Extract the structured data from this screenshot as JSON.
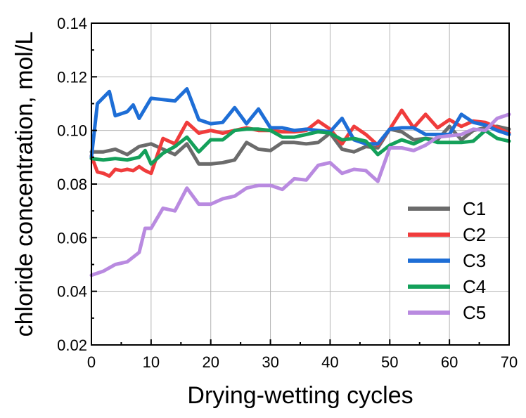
{
  "chart_data": {
    "type": "line",
    "title": "",
    "xlabel": "Drying-wetting cycles",
    "ylabel": "chloride concentration, mol/L",
    "xlim": [
      0,
      70
    ],
    "ylim": [
      0.02,
      0.14
    ],
    "xticks": [
      0,
      10,
      20,
      30,
      40,
      50,
      60,
      70
    ],
    "yticks": [
      0.02,
      0.04,
      0.06,
      0.08,
      0.1,
      0.12,
      0.14
    ],
    "xtick_labels": [
      "0",
      "10",
      "20",
      "30",
      "40",
      "50",
      "60",
      "70"
    ],
    "ytick_labels": [
      "0.02",
      "0.04",
      "0.06",
      "0.08",
      "0.10",
      "0.12",
      "0.14"
    ],
    "grid": true,
    "legend_position": "lower-right",
    "series": [
      {
        "name": "C1",
        "color": "#6b6b6b",
        "x": [
          0,
          2,
          4,
          6,
          8,
          10,
          12,
          14,
          16,
          18,
          20,
          22,
          24,
          26,
          28,
          30,
          32,
          34,
          36,
          38,
          40,
          42,
          44,
          46,
          48,
          50,
          52,
          54,
          56,
          58,
          60,
          62,
          64,
          66,
          68,
          70
        ],
        "y": [
          0.092,
          0.092,
          0.093,
          0.091,
          0.094,
          0.095,
          0.093,
          0.091,
          0.095,
          0.0875,
          0.0875,
          0.088,
          0.089,
          0.0955,
          0.093,
          0.0925,
          0.0955,
          0.0955,
          0.095,
          0.0955,
          0.099,
          0.093,
          0.092,
          0.094,
          0.0935,
          0.1005,
          0.0995,
          0.0965,
          0.097,
          0.0965,
          0.1015,
          0.0965,
          0.1,
          0.101,
          0.1015,
          0.1005
        ]
      },
      {
        "name": "C2",
        "color": "#f03c3c",
        "x": [
          0,
          1,
          2,
          3,
          4,
          5,
          6,
          7,
          8,
          9,
          10,
          12,
          14,
          16,
          18,
          20,
          22,
          24,
          26,
          28,
          30,
          32,
          34,
          36,
          38,
          40,
          42,
          44,
          46,
          48,
          50,
          52,
          54,
          56,
          58,
          60,
          62,
          64,
          66,
          68,
          70
        ],
        "y": [
          0.0905,
          0.0845,
          0.084,
          0.083,
          0.0855,
          0.085,
          0.0855,
          0.085,
          0.0865,
          0.085,
          0.084,
          0.097,
          0.095,
          0.103,
          0.099,
          0.1,
          0.099,
          0.1,
          0.101,
          0.1,
          0.1,
          0.0995,
          0.0995,
          0.1,
          0.1035,
          0.1005,
          0.095,
          0.1015,
          0.0985,
          0.0945,
          0.1005,
          0.1075,
          0.101,
          0.106,
          0.101,
          0.104,
          0.1015,
          0.1035,
          0.103,
          0.101,
          0.099
        ]
      },
      {
        "name": "C3",
        "color": "#1e6ed6",
        "x": [
          0,
          1,
          3,
          4,
          6,
          7,
          8,
          10,
          12,
          14,
          16,
          18,
          20,
          22,
          24,
          26,
          28,
          30,
          32,
          34,
          36,
          38,
          40,
          42,
          44,
          46,
          48,
          50,
          52,
          54,
          56,
          58,
          60,
          62,
          64,
          66,
          68,
          70
        ],
        "y": [
          0.09,
          0.11,
          0.1145,
          0.1055,
          0.107,
          0.1095,
          0.1045,
          0.112,
          0.1115,
          0.111,
          0.1155,
          0.104,
          0.1025,
          0.103,
          0.1085,
          0.1025,
          0.108,
          0.101,
          0.101,
          0.1,
          0.1005,
          0.1,
          0.0995,
          0.1045,
          0.0965,
          0.095,
          0.095,
          0.1005,
          0.101,
          0.101,
          0.0985,
          0.0985,
          0.0985,
          0.106,
          0.103,
          0.102,
          0.1,
          0.0985
        ]
      },
      {
        "name": "C4",
        "color": "#14a05a",
        "x": [
          0,
          2,
          4,
          6,
          8,
          9,
          10,
          12,
          14,
          16,
          18,
          20,
          22,
          24,
          26,
          28,
          30,
          32,
          34,
          36,
          38,
          40,
          42,
          44,
          46,
          48,
          50,
          52,
          54,
          56,
          58,
          60,
          62,
          64,
          66,
          68,
          70
        ],
        "y": [
          0.0895,
          0.089,
          0.0895,
          0.089,
          0.09,
          0.0925,
          0.0875,
          0.0915,
          0.094,
          0.0975,
          0.092,
          0.0965,
          0.0965,
          0.1,
          0.1005,
          0.1005,
          0.1,
          0.0975,
          0.0975,
          0.0985,
          0.0995,
          0.099,
          0.0965,
          0.097,
          0.096,
          0.091,
          0.0945,
          0.0965,
          0.095,
          0.097,
          0.0955,
          0.0955,
          0.0955,
          0.096,
          0.1,
          0.097,
          0.096
        ]
      },
      {
        "name": "C5",
        "color": "#b98ae0",
        "x": [
          0,
          2,
          4,
          6,
          8,
          9,
          10,
          12,
          14,
          16,
          18,
          20,
          22,
          24,
          26,
          28,
          30,
          32,
          34,
          36,
          38,
          40,
          42,
          44,
          46,
          48,
          50,
          52,
          54,
          56,
          58,
          60,
          62,
          64,
          66,
          68,
          70
        ],
        "y": [
          0.046,
          0.0475,
          0.05,
          0.051,
          0.0545,
          0.0635,
          0.0635,
          0.071,
          0.07,
          0.0785,
          0.0725,
          0.0725,
          0.0745,
          0.0755,
          0.0785,
          0.0795,
          0.0795,
          0.078,
          0.082,
          0.0815,
          0.087,
          0.088,
          0.084,
          0.0855,
          0.085,
          0.081,
          0.0935,
          0.0935,
          0.0925,
          0.0945,
          0.0975,
          0.098,
          0.0985,
          0.1005,
          0.1,
          0.1045,
          0.106
        ]
      }
    ]
  }
}
